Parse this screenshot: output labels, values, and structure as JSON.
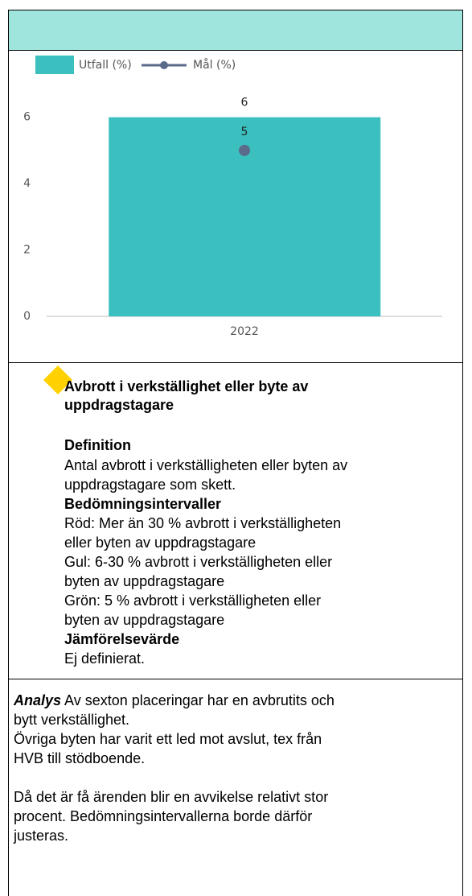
{
  "chart_data": {
    "type": "bar",
    "categories": [
      "2022"
    ],
    "series": [
      {
        "name": "Utfall (%)",
        "color": "#3bbfbf",
        "type": "bar",
        "values": [
          6
        ]
      },
      {
        "name": "Mål (%)",
        "color": "#5b6b8a",
        "type": "line",
        "values": [
          5
        ]
      }
    ],
    "ylim": [
      0,
      6.5
    ],
    "yticks": [
      0,
      2,
      4,
      6
    ],
    "grid": false,
    "legend": "top-left"
  },
  "info": {
    "title": [
      "Avbrott i verkställighet eller byte av",
      "uppdragstagare"
    ],
    "definition_heading": "Definition",
    "definition": [
      "Antal avbrott i verkställigheten eller byten av",
      "uppdragstagare som skett."
    ],
    "intervals_heading": "Bedömningsintervaller",
    "intervals": [
      "Röd: Mer än 30 % avbrott i verkställigheten",
      "eller byten av uppdragstagare",
      "Gul: 6-30 % avbrott i verkställigheten eller",
      "byten av uppdragstagare",
      "Grön: 5 % avbrott i verkställigheten eller",
      "byten av uppdragstagare"
    ],
    "comparison_heading": "Jämförelsevärde",
    "comparison": "Ej definierat."
  },
  "analysis": {
    "label": "Analys",
    "first_line": " Av sexton placeringar har en avbrutits och",
    "lines": [
      "bytt verkställighet.",
      "Övriga byten har varit ett led mot avslut, tex från",
      "HVB till stödboende."
    ],
    "lines2": [
      "Då det är få ärenden blir en avvikelse relativt stor",
      "procent. Bedömningsintervallerna borde därför",
      "justeras."
    ]
  }
}
